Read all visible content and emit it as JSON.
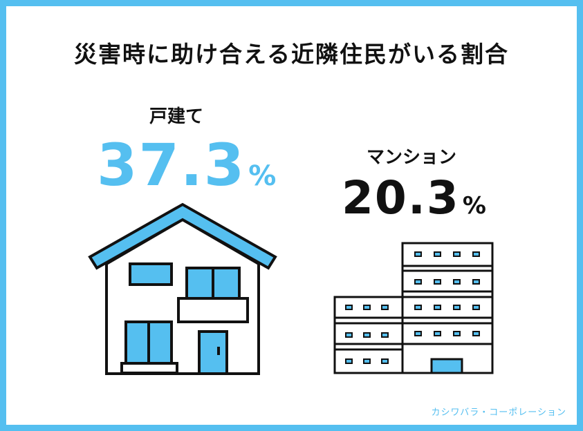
{
  "title": "災害時に助け合える近隣住民がいる割合",
  "credit": "カシワバラ・コーポレーション",
  "colors": {
    "accent": "#55bff0",
    "ink": "#111111"
  },
  "chart_data": {
    "type": "bar",
    "title": "災害時に助け合える近隣住民がいる割合",
    "categories": [
      "戸建て",
      "マンション"
    ],
    "values": [
      37.3,
      20.3
    ],
    "unit": "%",
    "display": [
      {
        "label": "戸建て",
        "number": "37.3",
        "unit": "%"
      },
      {
        "label": "マンション",
        "number": "20.3",
        "unit": "%"
      }
    ]
  }
}
